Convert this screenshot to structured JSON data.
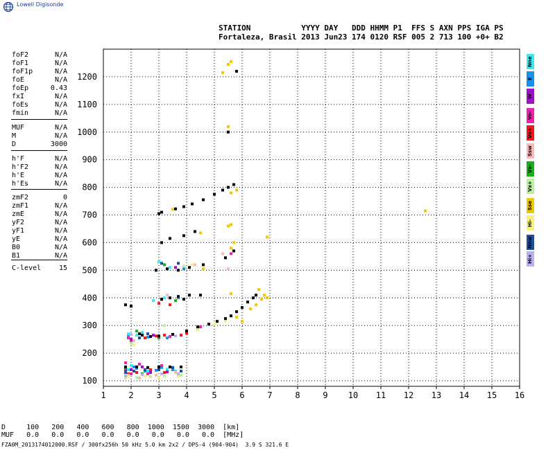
{
  "logo_text": "Lowell Digisonde",
  "header": {
    "line1": "STATION           YYYY DAY   DDD HHMM P1  FFS S AXN PPS IGA PS",
    "line2": "Fortaleza, Brasil 2013 Jun23 174 0120 RSF 005 2 713 100 +0+ B2"
  },
  "params": [
    {
      "key": "foF2",
      "value": "N/A"
    },
    {
      "key": "foF1",
      "value": "N/A"
    },
    {
      "key": "foF1p",
      "value": "N/A"
    },
    {
      "key": "foE",
      "value": "N/A"
    },
    {
      "key": "foEp",
      "value": "0.43"
    },
    {
      "key": "fxI",
      "value": "N/A"
    },
    {
      "key": "foEs",
      "value": "N/A"
    },
    {
      "key": "fmin",
      "value": "N/A"
    },
    {
      "key": "MUF",
      "value": "N/A"
    },
    {
      "key": "M",
      "value": "N/A"
    },
    {
      "key": "D",
      "value": "3000"
    },
    {
      "key": "h'F",
      "value": "N/A"
    },
    {
      "key": "h'F2",
      "value": "N/A"
    },
    {
      "key": "h'E",
      "value": "N/A"
    },
    {
      "key": "h'Es",
      "value": "N/A"
    },
    {
      "key": "zmF2",
      "value": "0"
    },
    {
      "key": "zmF1",
      "value": "N/A"
    },
    {
      "key": "zmE",
      "value": "N/A"
    },
    {
      "key": "yF2",
      "value": "N/A"
    },
    {
      "key": "yF1",
      "value": "N/A"
    },
    {
      "key": "yE",
      "value": "N/A"
    },
    {
      "key": "B0",
      "value": "N/A"
    },
    {
      "key": "B1",
      "value": "N/A"
    },
    {
      "key": "C-level",
      "value": "15"
    }
  ],
  "legend": [
    {
      "label": "Nne",
      "color": "#38e8f0"
    },
    {
      "label": "E",
      "color": "#1890f0"
    },
    {
      "label": "W",
      "color": "#a010c8"
    },
    {
      "label": "Vo-",
      "color": "#f020b0"
    },
    {
      "label": "Vo+",
      "color": "#f01818"
    },
    {
      "label": "Ssw",
      "color": "#f8b8b8"
    },
    {
      "label": "Vx-",
      "color": "#18b018"
    },
    {
      "label": "Vx+",
      "color": "#b8f0a0"
    },
    {
      "label": "Sse",
      "color": "#f0c800"
    },
    {
      "label": "Hi-",
      "color": "#f8f080"
    },
    {
      "label": "Nnw",
      "color": "#1850a8"
    },
    {
      "label": "Hi+",
      "color": "#b8b0f0"
    }
  ],
  "bottom": {
    "d_row": "D     100   200   400   600   800  1000  1500  3000  [km]",
    "muf_row": "MUF   0.0   0.0   0.0   0.0   0.0   0.0   0.0   0.0  [MHz]",
    "footer": "FZA0M_2013174012000.RSF / 300fx256h 50 kHz 5.0 km 2x2 / DPS-4 (904-904)  3.9 S 321.6 E"
  },
  "chart_data": {
    "type": "scatter",
    "title": "",
    "xlabel": "",
    "ylabel": "",
    "xlim": [
      1,
      16
    ],
    "ylim": [
      80,
      1300
    ],
    "xticks": [
      1,
      2,
      3,
      4,
      5,
      6,
      7,
      8,
      9,
      10,
      11,
      12,
      13,
      14,
      15,
      16
    ],
    "yticks": [
      100,
      200,
      300,
      400,
      500,
      600,
      700,
      800,
      900,
      1000,
      1100,
      1200
    ],
    "grid": true,
    "series": [
      {
        "name": "Nne",
        "points": [
          [
            1.8,
            150
          ],
          [
            1.9,
            140
          ],
          [
            2.2,
            145
          ],
          [
            2.6,
            135
          ],
          [
            3.0,
            148
          ],
          [
            3.3,
            142
          ],
          [
            1.9,
            270
          ],
          [
            2.2,
            265
          ],
          [
            2.4,
            275
          ],
          [
            3.0,
            530
          ],
          [
            3.4,
            510
          ],
          [
            2.8,
            390
          ],
          [
            3.2,
            400
          ],
          [
            2.0,
            155
          ],
          [
            3.6,
            135
          ]
        ]
      },
      {
        "name": "E",
        "points": [
          [
            1.8,
            142
          ],
          [
            2.1,
            150
          ],
          [
            2.5,
            135
          ],
          [
            2.9,
            138
          ],
          [
            3.5,
            140
          ],
          [
            1.9,
            260
          ],
          [
            2.6,
            258
          ],
          [
            3.3,
            255
          ],
          [
            3.7,
            400
          ],
          [
            3.9,
            505
          ],
          [
            2.2,
            145
          ],
          [
            3.1,
            148
          ]
        ]
      },
      {
        "name": "W",
        "points": [
          [
            1.8,
            135
          ],
          [
            2.0,
            140
          ],
          [
            2.4,
            150
          ],
          [
            2.7,
            130
          ],
          [
            3.3,
            132
          ],
          [
            2.0,
            250
          ],
          [
            2.8,
            265
          ],
          [
            3.1,
            395
          ],
          [
            3.6,
            510
          ]
        ]
      },
      {
        "name": "Vo-",
        "points": [
          [
            1.8,
            165
          ],
          [
            2.0,
            125
          ],
          [
            2.3,
            160
          ],
          [
            2.6,
            125
          ],
          [
            3.1,
            155
          ],
          [
            1.9,
            255
          ],
          [
            2.0,
            240
          ],
          [
            3.4,
            260
          ],
          [
            4.5,
            295
          ],
          [
            5.6,
            560
          ]
        ]
      },
      {
        "name": "Vo+",
        "points": [
          [
            1.9,
            125
          ],
          [
            2.2,
            130
          ],
          [
            2.7,
            140
          ],
          [
            3.2,
            130
          ],
          [
            2.5,
            255
          ],
          [
            2.9,
            262
          ],
          [
            3.2,
            265
          ],
          [
            3.5,
            268
          ],
          [
            3.8,
            265
          ],
          [
            4.0,
            272
          ],
          [
            3.0,
            380
          ],
          [
            3.4,
            375
          ]
        ]
      },
      {
        "name": "Ssw",
        "points": [
          [
            1.9,
            120
          ],
          [
            2.3,
            110
          ],
          [
            2.9,
            120
          ],
          [
            3.6,
            130
          ],
          [
            2.1,
            245
          ],
          [
            3.3,
            410
          ],
          [
            4.3,
            520
          ],
          [
            5.3,
            560
          ],
          [
            5.5,
            505
          ]
        ]
      },
      {
        "name": "Vx-",
        "points": [
          [
            1.8,
            145
          ],
          [
            2.4,
            125
          ],
          [
            3.0,
            145
          ],
          [
            3.4,
            150
          ],
          [
            2.2,
            280
          ],
          [
            3.0,
            255
          ],
          [
            3.6,
            390
          ],
          [
            3.2,
            520
          ]
        ]
      },
      {
        "name": "Vx+",
        "points": [
          [
            1.8,
            110
          ],
          [
            2.2,
            112
          ],
          [
            2.7,
            115
          ],
          [
            3.2,
            118
          ],
          [
            3.8,
            120
          ],
          [
            2.0,
            235
          ],
          [
            3.2,
            300
          ],
          [
            3.9,
            515
          ]
        ]
      },
      {
        "name": "Sse",
        "points": [
          [
            5.5,
            1245
          ],
          [
            5.6,
            1255
          ],
          [
            5.3,
            1215
          ],
          [
            5.5,
            1020
          ],
          [
            5.6,
            780
          ],
          [
            5.8,
            790
          ],
          [
            5.5,
            660
          ],
          [
            5.6,
            665
          ],
          [
            6.9,
            620
          ],
          [
            5.7,
            600
          ],
          [
            5.6,
            580
          ],
          [
            5.8,
            330
          ],
          [
            6.0,
            315
          ],
          [
            6.3,
            360
          ],
          [
            6.5,
            375
          ],
          [
            6.7,
            395
          ],
          [
            6.8,
            410
          ],
          [
            6.9,
            400
          ],
          [
            6.6,
            430
          ],
          [
            5.6,
            415
          ],
          [
            4.6,
            505
          ],
          [
            12.6,
            715
          ],
          [
            3.5,
            720
          ],
          [
            4.5,
            635
          ]
        ]
      },
      {
        "name": "Hi-",
        "points": [
          [
            1.9,
            115
          ],
          [
            2.5,
            118
          ],
          [
            3.0,
            112
          ],
          [
            3.7,
            115
          ],
          [
            2.1,
            230
          ],
          [
            4.2,
            520
          ],
          [
            5.0,
            305
          ],
          [
            5.4,
            315
          ],
          [
            4.4,
            285
          ]
        ]
      },
      {
        "name": "Nnw",
        "points": [
          [
            1.8,
            130
          ],
          [
            2.1,
            135
          ],
          [
            2.5,
            140
          ],
          [
            3.0,
            140
          ],
          [
            3.5,
            148
          ],
          [
            3.8,
            135
          ],
          [
            2.3,
            255
          ],
          [
            2.6,
            270
          ],
          [
            3.1,
            525
          ],
          [
            3.7,
            525
          ]
        ]
      },
      {
        "name": "Hi+",
        "points": [
          [
            1.8,
            118
          ],
          [
            2.4,
            122
          ],
          [
            3.1,
            125
          ],
          [
            3.7,
            125
          ],
          [
            2.0,
            268
          ],
          [
            3.6,
            262
          ],
          [
            4.1,
            410
          ]
        ]
      },
      {
        "name": "Black",
        "points": [
          [
            3.0,
            705
          ],
          [
            3.1,
            710
          ],
          [
            3.6,
            722
          ],
          [
            3.9,
            730
          ],
          [
            4.2,
            740
          ],
          [
            4.6,
            755
          ],
          [
            5.0,
            775
          ],
          [
            5.3,
            790
          ],
          [
            5.5,
            800
          ],
          [
            5.7,
            810
          ],
          [
            3.1,
            600
          ],
          [
            3.4,
            615
          ],
          [
            3.9,
            625
          ],
          [
            4.3,
            640
          ],
          [
            2.9,
            500
          ],
          [
            3.3,
            505
          ],
          [
            3.7,
            500
          ],
          [
            4.1,
            510
          ],
          [
            4.6,
            520
          ],
          [
            5.4,
            545
          ],
          [
            5.7,
            570
          ],
          [
            3.1,
            395
          ],
          [
            3.4,
            400
          ],
          [
            3.7,
            405
          ],
          [
            4.1,
            410
          ],
          [
            4.5,
            410
          ],
          [
            2.4,
            265
          ],
          [
            2.7,
            260
          ],
          [
            3.0,
            262
          ],
          [
            3.5,
            268
          ],
          [
            4.0,
            280
          ],
          [
            4.4,
            295
          ],
          [
            4.8,
            305
          ],
          [
            5.1,
            315
          ],
          [
            5.4,
            325
          ],
          [
            5.6,
            335
          ],
          [
            5.8,
            350
          ],
          [
            6.0,
            365
          ],
          [
            6.2,
            385
          ],
          [
            6.4,
            400
          ],
          [
            6.5,
            410
          ],
          [
            1.8,
            375
          ],
          [
            2.0,
            370
          ],
          [
            1.8,
            150
          ],
          [
            2.2,
            150
          ],
          [
            2.6,
            148
          ],
          [
            3.0,
            150
          ],
          [
            3.4,
            150
          ],
          [
            3.8,
            150
          ],
          [
            5.5,
            1000
          ],
          [
            5.8,
            1220
          ],
          [
            2.3,
            270
          ],
          [
            3.9,
            395
          ]
        ]
      }
    ]
  }
}
